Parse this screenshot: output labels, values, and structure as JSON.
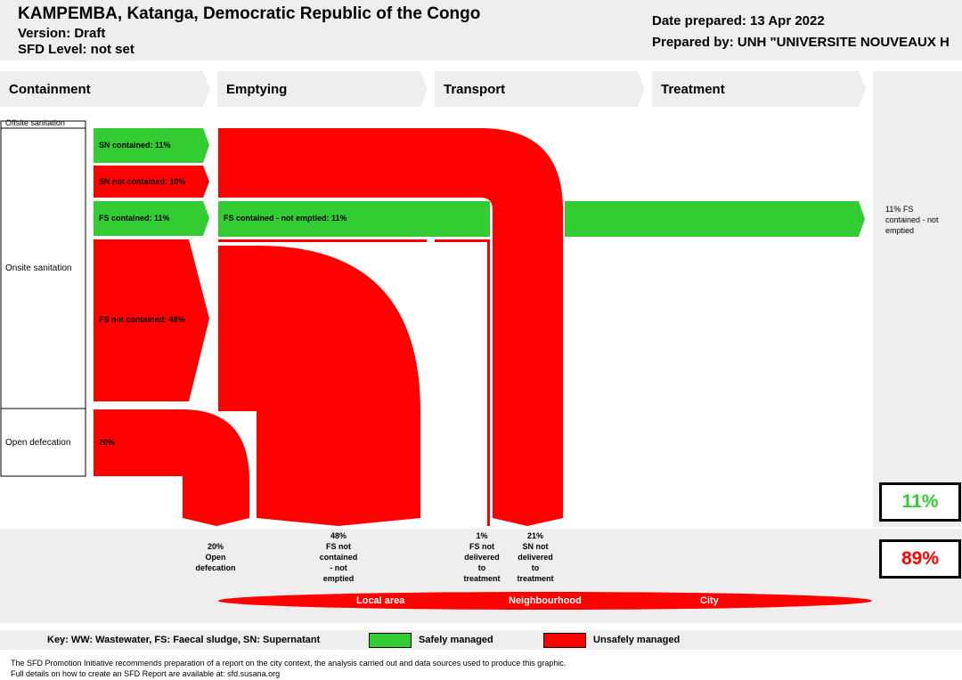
{
  "header": {
    "title": "KAMPEMBA, Katanga, Democratic Republic of the Congo",
    "version": "Version: Draft",
    "sfd_level": "SFD Level: not set",
    "date_prepared": "Date prepared: 13 Apr 2022",
    "prepared_by": "Prepared by: UNH \"UNIVERSITE NOUVEAUX H"
  },
  "stages": [
    "Containment",
    "Emptying",
    "Transport",
    "Treatment"
  ],
  "left_column": {
    "offsite": "Offsite sanitation",
    "onsite": "Onsite sanitation",
    "open_defecation": "Open defecation"
  },
  "flows": {
    "sn_contained": "SN contained: 11%",
    "sn_not_contained": "SN not contained: 10%",
    "fs_contained": "FS contained: 11%",
    "fs_not_contained": "FS not contained: 48%",
    "open_def": "20%",
    "fs_contained_not_emptied": "FS contained - not emptied: 11%"
  },
  "right_label": [
    "11% FS",
    "contained - not",
    "emptied"
  ],
  "summary": {
    "safe": "11%",
    "unsafe": "89%"
  },
  "bottom_labels": [
    [
      "20%",
      "Open",
      "defecation"
    ],
    [
      "48%",
      "FS not",
      "contained",
      "- not",
      "emptied"
    ],
    [
      "1%",
      "FS not",
      "delivered",
      "to",
      "treatment"
    ],
    [
      "21%",
      "SN not",
      "delivered",
      "to",
      "treatment"
    ]
  ],
  "areas": {
    "local": "Local area",
    "neighbourhood": "Neighbourhood",
    "city": "City"
  },
  "key": {
    "text": "Key: WW: Wastewater, FS: Faecal sludge, SN: Supernatant",
    "safe": "Safely managed",
    "unsafe": "Unsafely managed"
  },
  "colors": {
    "safe": "#33cc33",
    "unsafe": "#ff0000"
  },
  "footer": {
    "line1": "The SFD Promotion Initiative recommends preparation of a report on the city context, the analysis carried out and data sources used to produce this graphic.",
    "line2": "Full details on how to create an SFD Report are available at: sfd.susana.org"
  }
}
